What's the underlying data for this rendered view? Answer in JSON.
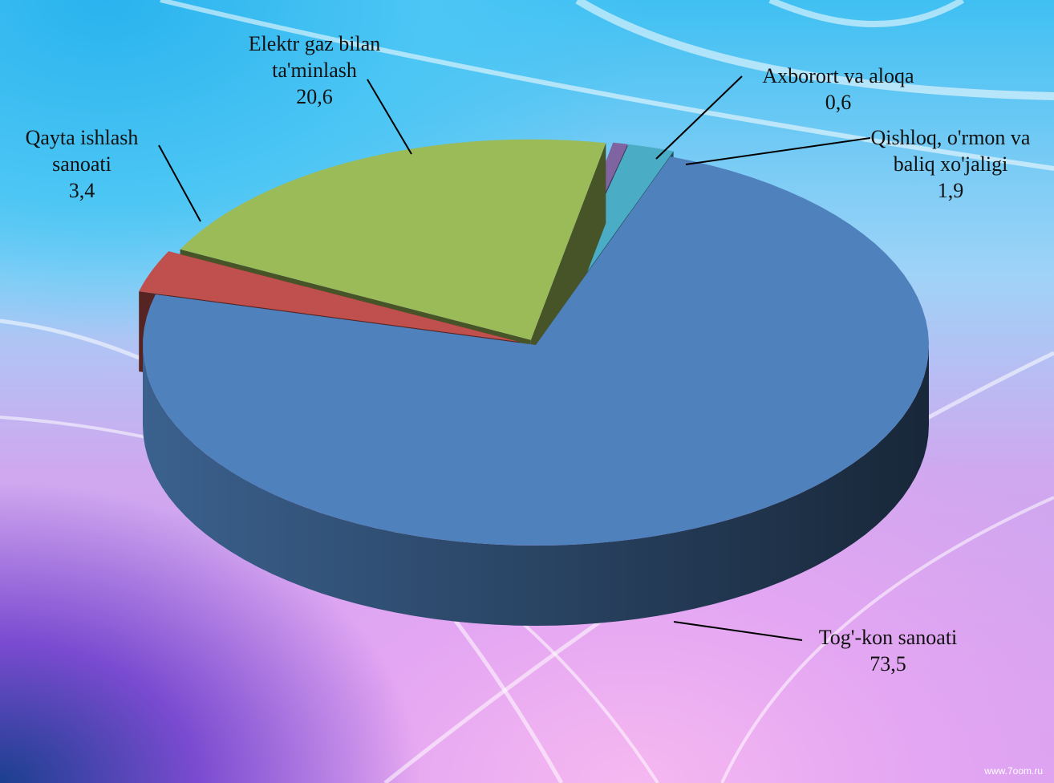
{
  "chart_data": {
    "type": "pie3d",
    "categories": [
      "Tog'-kon sanoati",
      "Qayta ishlash sanoati",
      "Elektr gaz bilan ta'minlash",
      "Axborort va aloqa",
      "Qishloq, o'rmon va baliq xo'jaligi"
    ],
    "values": [
      73.5,
      3.4,
      20.6,
      0.6,
      1.9
    ],
    "value_labels": [
      "73,5",
      "3,4",
      "20,6",
      "0,6",
      "1,9"
    ],
    "colors": [
      "#4f81bd",
      "#c0504d",
      "#9bbb59",
      "#8064a2",
      "#4bacc6"
    ]
  },
  "watermark": "www.7oom.ru"
}
